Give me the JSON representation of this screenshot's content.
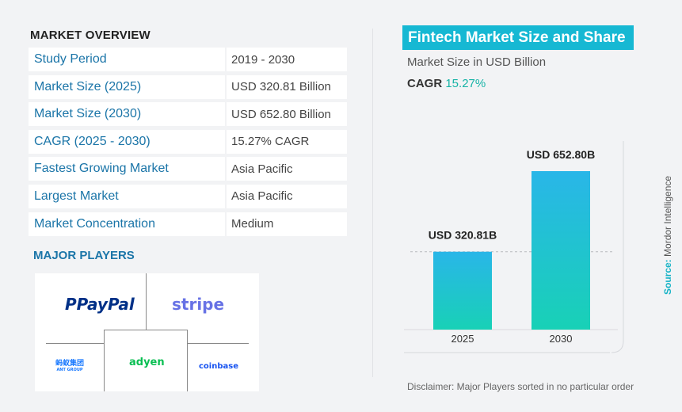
{
  "overview": {
    "heading": "MARKET OVERVIEW",
    "rows": [
      {
        "label": "Study Period",
        "value": "2019 - 2030"
      },
      {
        "label": "Market Size (2025)",
        "value": "USD 320.81 Billion"
      },
      {
        "label": "Market Size (2030)",
        "value": "USD 652.80 Billion"
      },
      {
        "label": "CAGR (2025 - 2030)",
        "value": "15.27% CAGR"
      },
      {
        "label": "Fastest Growing Market",
        "value": "Asia Pacific"
      },
      {
        "label": "Largest Market",
        "value": "Asia Pacific"
      },
      {
        "label": "Market Concentration",
        "value": "Medium"
      }
    ]
  },
  "players": {
    "heading": "MAJOR PLAYERS",
    "logos": {
      "paypal": "PayPal",
      "stripe": "stripe",
      "ant": "蚂蚁集团",
      "ant_sub": "ANT GROUP",
      "adyen": "adyen",
      "coinbase": "coinbase"
    }
  },
  "chart_title": "Fintech Market Size and Share",
  "chart_subtitle": "Market Size in USD Billion",
  "cagr": {
    "label": "CAGR",
    "value": "15.27%"
  },
  "chart_data": {
    "type": "bar",
    "categories": [
      "2025",
      "2030"
    ],
    "values": [
      320.81,
      652.8
    ],
    "data_labels": [
      "USD 320.81B",
      "USD 652.80B"
    ],
    "title": "Fintech Market Size and Share",
    "ylabel": "Market Size in USD Billion",
    "colors": {
      "bar_top": "#29b6e8",
      "bar_bottom": "#18d1b6"
    }
  },
  "source": {
    "label": "Source:",
    "value": "Mordor Intelligence"
  },
  "disclaimer": "Disclaimer:  Major Players sorted in no particular order"
}
